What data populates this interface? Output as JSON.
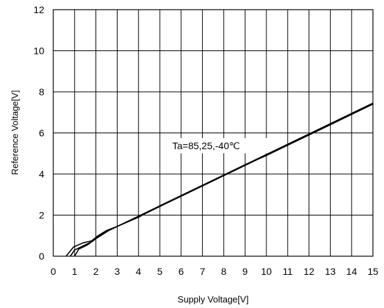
{
  "chart_data": {
    "type": "line",
    "title": "",
    "xlabel": "Supply Voltage[V]",
    "ylabel": "Reference Voltage[V]",
    "xlim": [
      0,
      15
    ],
    "ylim": [
      0,
      12
    ],
    "xticks": [
      "0",
      "1",
      "2",
      "3",
      "4",
      "5",
      "6",
      "7",
      "8",
      "9",
      "10",
      "11",
      "12",
      "13",
      "14",
      "15"
    ],
    "yticks": [
      "0",
      "2",
      "4",
      "6",
      "8",
      "10",
      "12"
    ],
    "grid": true,
    "annotation": "Ta=85,25,-40℃",
    "series": [
      {
        "x": [
          0.6,
          0.95,
          1.4,
          1.8,
          2.1,
          2.5,
          3,
          4,
          5,
          6,
          7,
          8,
          9,
          10,
          11,
          12,
          13,
          14,
          15
        ],
        "y": [
          0,
          0.45,
          0.65,
          0.75,
          1.0,
          1.25,
          1.45,
          1.9,
          2.45,
          2.95,
          3.45,
          3.95,
          4.45,
          4.9,
          5.4,
          5.9,
          6.4,
          6.9,
          7.4
        ]
      },
      {
        "x": [
          0.8,
          1.0,
          1.4,
          1.8,
          2.1,
          2.5,
          3,
          4,
          5,
          6,
          7,
          8,
          9,
          10,
          11,
          12,
          13,
          14,
          15
        ],
        "y": [
          0,
          0.3,
          0.5,
          0.7,
          0.95,
          1.2,
          1.45,
          1.92,
          2.42,
          2.92,
          3.42,
          3.92,
          4.42,
          4.92,
          5.42,
          5.92,
          6.42,
          6.92,
          7.42
        ]
      },
      {
        "x": [
          1.0,
          1.2,
          1.6,
          2.0,
          2.3,
          2.6,
          3,
          4,
          5,
          6,
          7,
          8,
          9,
          10,
          11,
          12,
          13,
          14,
          15
        ],
        "y": [
          0,
          0.35,
          0.55,
          0.85,
          1.05,
          1.25,
          1.45,
          1.95,
          2.45,
          2.95,
          3.45,
          3.95,
          4.45,
          4.95,
          5.45,
          5.95,
          6.45,
          6.95,
          7.45
        ]
      }
    ]
  }
}
